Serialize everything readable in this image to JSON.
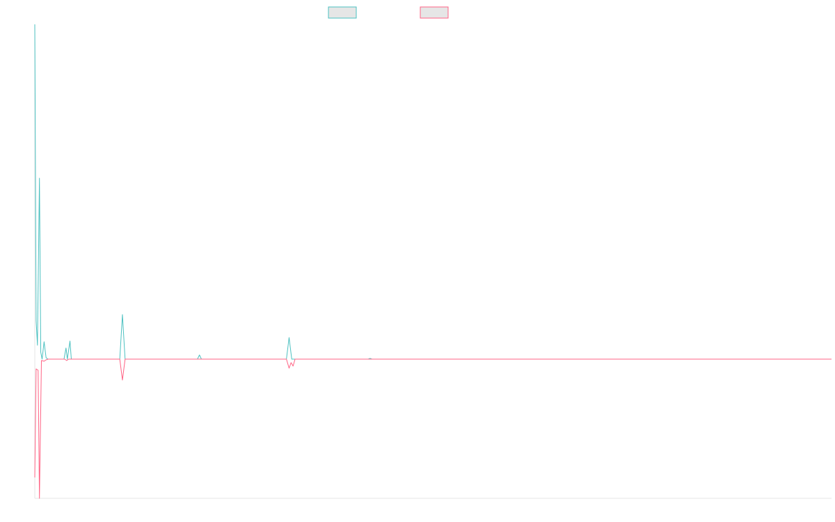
{
  "chart_data": {
    "type": "line",
    "xlim": [
      0,
      1200
    ],
    "ylim": [
      -200,
      480
    ],
    "grid": false,
    "legend_position": "top-center",
    "colors": {
      "series1": "#4bc0c0",
      "series2": "#ff6384",
      "axis": "#e5e5e5",
      "legend_fill": "#e6e6e6"
    },
    "series": [
      {
        "color": "#4bc0c0",
        "points": [
          [
            0,
            481
          ],
          [
            2,
            55
          ],
          [
            4,
            20
          ],
          [
            7,
            260
          ],
          [
            9,
            10
          ],
          [
            11,
            0
          ],
          [
            14,
            25
          ],
          [
            17,
            2
          ],
          [
            20,
            0
          ],
          [
            44,
            0
          ],
          [
            47,
            16
          ],
          [
            49,
            0
          ],
          [
            53,
            26
          ],
          [
            55,
            0
          ],
          [
            128,
            0
          ],
          [
            132,
            64
          ],
          [
            136,
            0
          ],
          [
            245,
            0
          ],
          [
            248,
            6
          ],
          [
            251,
            0
          ],
          [
            379,
            0
          ],
          [
            383,
            31
          ],
          [
            387,
            0
          ],
          [
            502,
            0
          ],
          [
            505,
            1
          ],
          [
            508,
            0
          ],
          [
            1200,
            0
          ]
        ]
      },
      {
        "color": "#ff6384",
        "points": [
          [
            0,
            -170
          ],
          [
            2,
            -14
          ],
          [
            5,
            -16
          ],
          [
            7,
            -200
          ],
          [
            10,
            -2
          ],
          [
            14,
            -3
          ],
          [
            17,
            -1
          ],
          [
            20,
            0
          ],
          [
            45,
            0
          ],
          [
            48,
            -2
          ],
          [
            51,
            0
          ],
          [
            128,
            0
          ],
          [
            132,
            -30
          ],
          [
            136,
            0
          ],
          [
            379,
            0
          ],
          [
            383,
            -13
          ],
          [
            386,
            -5
          ],
          [
            389,
            -10
          ],
          [
            392,
            0
          ],
          [
            1200,
            0
          ]
        ]
      }
    ]
  }
}
